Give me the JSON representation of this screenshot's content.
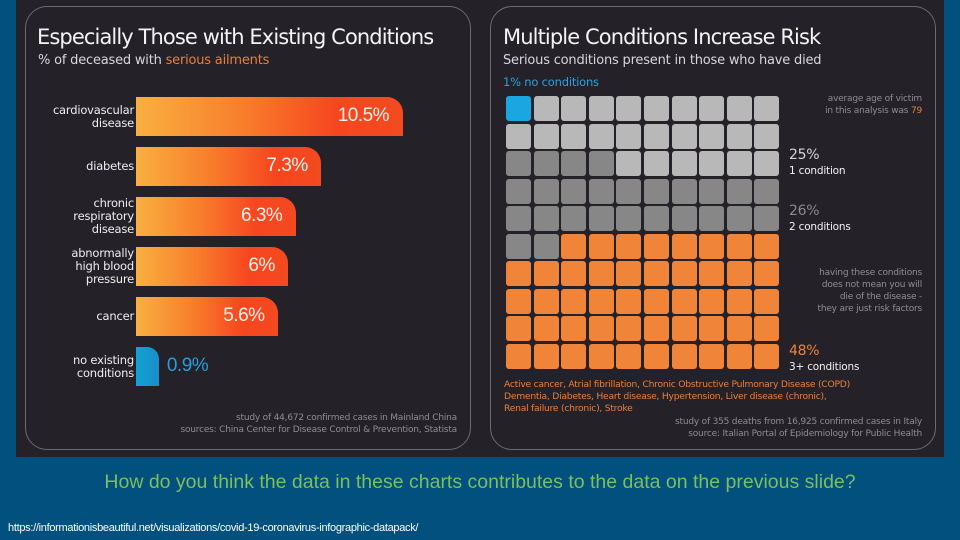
{
  "slide": {
    "question": "How do you think the data in these charts contributes to the data on the previous slide?",
    "source_url": "https://informationisbeautiful.net/visualizations/covid-19-coronavirus-infographic-datapack/"
  },
  "colors": {
    "slide_background": "#02507e",
    "panel_background": "#242129",
    "bar_gradient_start": "#f9b040",
    "bar_gradient_end": "#f44a20",
    "no_condition_blue": "#1aa6e0",
    "light_gray": "#b8b8b8",
    "dark_gray": "#878787",
    "orange": "#f08438",
    "question_green": "#7dbe5f"
  },
  "left_panel": {
    "title": "Especially Those with Existing Conditions",
    "subtitle_prefix": "% of deceased with ",
    "subtitle_highlight": "serious ailments",
    "footnote_line1": "study of 44,672 confirmed cases in Mainland China",
    "footnote_line2": "sources: China Center for Disease Control & Prevention, Statista"
  },
  "right_panel": {
    "title": "Multiple Conditions Increase Risk",
    "subtitle": "Serious conditions present in those who have died",
    "no_conditions_label": "1% no conditions",
    "avg_age_line1": "average age of victim",
    "avg_age_line2_prefix": "in this analysis was ",
    "avg_age_value": "79",
    "one_condition_pct": "25%",
    "one_condition_label": "1 condition",
    "two_conditions_pct": "26%",
    "two_conditions_label": "2 conditions",
    "disclaimer": [
      "having these conditions",
      "does not mean you will",
      "die of the disease -",
      "they are just risk factors"
    ],
    "three_plus_pct": "48%",
    "three_plus_label": "3+ conditions",
    "conditions_list": [
      "Active cancer, Atrial fibrillation, Chronic Obstructive Pulmonary Disease (COPD)",
      "Dementia, Diabetes, Heart disease, Hypertension, Liver disease (chronic),",
      "Renal failure (chronic), Stroke"
    ],
    "footnote_line1": "study of 355 deaths from 16,925 confirmed cases in Italy",
    "footnote_line2": "source: Italian Portal of Epidemiology for Public Health"
  },
  "chart_data": [
    {
      "type": "bar",
      "orientation": "horizontal",
      "title": "Especially Those with Existing Conditions",
      "subtitle": "% of deceased with serious ailments",
      "categories": [
        [
          "cardiovascular",
          "disease"
        ],
        [
          "diabetes"
        ],
        [
          "chronic",
          "respiratory",
          "disease"
        ],
        [
          "abnormally",
          "high blood",
          "pressure"
        ],
        [
          "cancer"
        ],
        [
          "no existing",
          "conditions"
        ]
      ],
      "values": [
        10.5,
        7.3,
        6.3,
        6,
        5.6,
        0.9
      ],
      "value_labels": [
        "10.5%",
        "7.3%",
        "6.3%",
        "6%",
        "5.6%",
        "0.9%"
      ],
      "highlight": [
        false,
        false,
        false,
        false,
        false,
        true
      ],
      "unit": "%",
      "xlabel": "",
      "ylabel": "",
      "grid": false
    },
    {
      "type": "waffle",
      "title": "Multiple Conditions Increase Risk",
      "subtitle": "Serious conditions present in those who have died",
      "grid_rows": 10,
      "grid_cols": 10,
      "series": [
        {
          "name": "no conditions",
          "value": 1,
          "label": "1%",
          "color": "#1aa6e0"
        },
        {
          "name": "1 condition",
          "value": 25,
          "label": "25%",
          "color": "#b8b8b8"
        },
        {
          "name": "2 conditions",
          "value": 26,
          "label": "26%",
          "color": "#878787"
        },
        {
          "name": "3+ conditions",
          "value": 48,
          "label": "48%",
          "color": "#f08438"
        }
      ],
      "fill_order": "light gray fills rows 1-3 from left (after blue); dark gray starts at row 3 col 1; orange fills from bottom-right up"
    }
  ]
}
